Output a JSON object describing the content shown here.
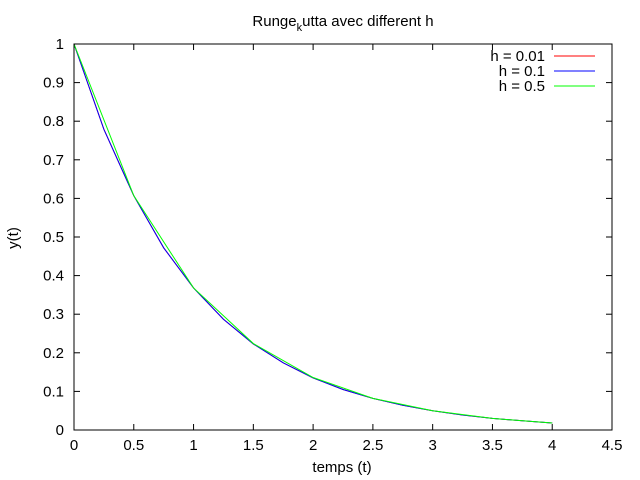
{
  "chart_data": {
    "type": "line",
    "title": "Runge",
    "title_sub": "k",
    "title_rest": "utta avec different h",
    "xlabel": "temps (t)",
    "ylabel": "y(t)",
    "xlim": [
      0,
      4.5
    ],
    "ylim": [
      0,
      1
    ],
    "x_ticks": [
      0,
      0.5,
      1,
      1.5,
      2,
      2.5,
      3,
      3.5,
      4,
      4.5
    ],
    "x_tick_labels": [
      "0",
      "0.5",
      "1",
      "1.5",
      "2",
      "2.5",
      "3",
      "3.5",
      "4",
      "4.5"
    ],
    "y_ticks": [
      0,
      0.1,
      0.2,
      0.3,
      0.4,
      0.5,
      0.6,
      0.7,
      0.8,
      0.9,
      1
    ],
    "y_tick_labels": [
      "0",
      "0.1",
      "0.2",
      "0.3",
      "0.4",
      "0.5",
      "0.6",
      "0.7",
      "0.8",
      "0.9",
      "1"
    ],
    "grid": false,
    "legend_position": "top-right",
    "series": [
      {
        "name": "h = 0.01",
        "color": "#ff0000",
        "x": [
          0,
          0.25,
          0.5,
          0.75,
          1,
          1.25,
          1.5,
          1.75,
          2,
          2.25,
          2.5,
          2.75,
          3,
          3.25,
          3.5,
          3.75,
          4
        ],
        "y": [
          1,
          0.779,
          0.607,
          0.472,
          0.368,
          0.287,
          0.223,
          0.174,
          0.135,
          0.105,
          0.082,
          0.064,
          0.05,
          0.039,
          0.03,
          0.024,
          0.018
        ]
      },
      {
        "name": "h = 0.1",
        "color": "#0000ff",
        "x": [
          0,
          0.25,
          0.5,
          0.75,
          1,
          1.25,
          1.5,
          1.75,
          2,
          2.25,
          2.5,
          2.75,
          3,
          3.25,
          3.5,
          3.75,
          4
        ],
        "y": [
          1,
          0.779,
          0.607,
          0.472,
          0.368,
          0.287,
          0.223,
          0.174,
          0.135,
          0.105,
          0.082,
          0.064,
          0.05,
          0.039,
          0.03,
          0.024,
          0.018
        ]
      },
      {
        "name": "h = 0.5",
        "color": "#00ff00",
        "x": [
          0,
          0.5,
          1,
          1.5,
          2,
          2.5,
          3,
          3.5,
          4
        ],
        "y": [
          1,
          0.607,
          0.368,
          0.224,
          0.136,
          0.082,
          0.05,
          0.03,
          0.018
        ]
      }
    ]
  }
}
